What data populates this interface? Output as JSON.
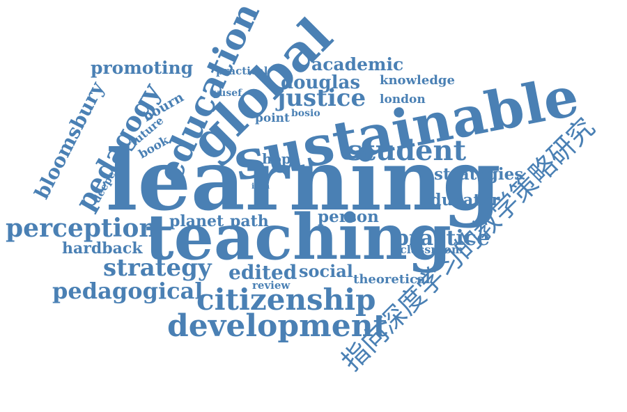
{
  "words": [
    "learning",
    "teaching",
    "sustainable",
    "global",
    "education",
    "pedagogy",
    "student",
    "citizenship",
    "development",
    "strategy",
    "perception",
    "justice",
    "bloomsbury",
    "pedagogical",
    "practice",
    "promoting",
    "academic",
    "douglas",
    "knowledge",
    "london",
    "strategies",
    "educator",
    "person",
    "path",
    "planet",
    "hope",
    "edited",
    "social",
    "theoretical",
    "review",
    "hardback",
    "classroom",
    "practical",
    "yusef",
    "bosio",
    "point",
    "bourn",
    "future",
    "book",
    "deeper",
    "isbn",
    "指向深度学习的教学策略研究"
  ],
  "colors": {
    "text": "#4a80b4",
    "background": "#ffffff"
  }
}
